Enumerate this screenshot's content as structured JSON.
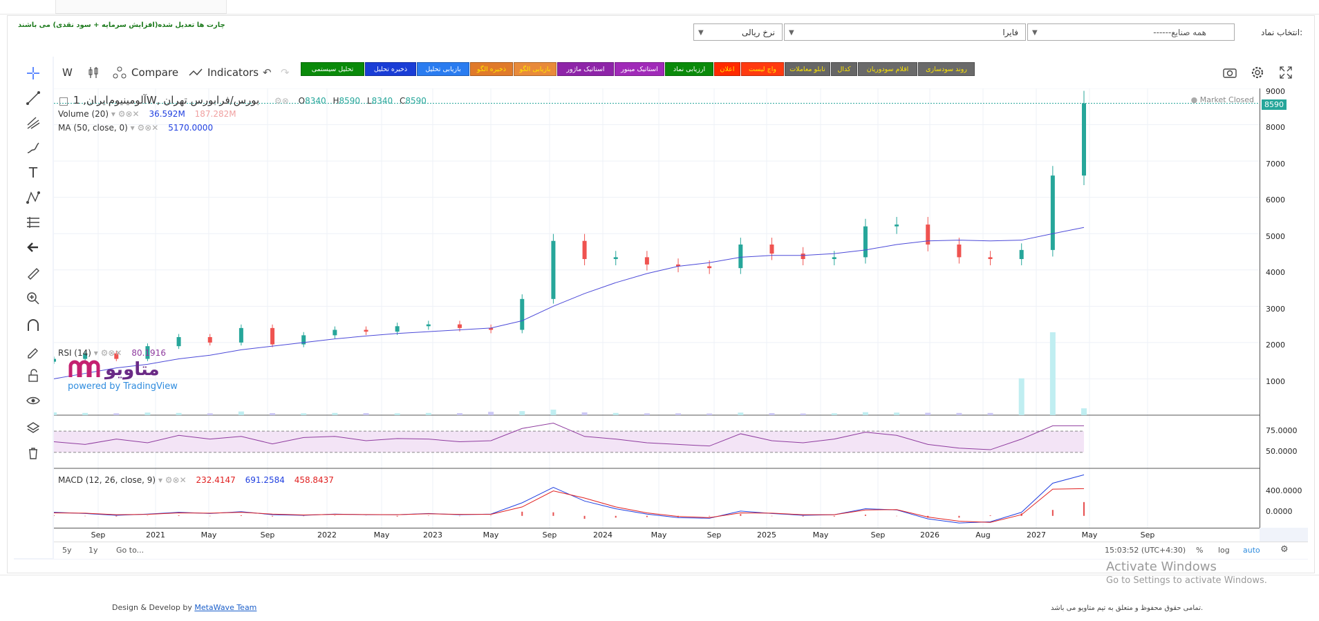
{
  "header": {
    "note": "چارت ها تعدیل شده(افزایش سرمایه + سود نقدی) می باشند",
    "select_symbol_label": "انتخاب نماد:",
    "industry_select": "------همه صنایع",
    "symbol_select": "فایرا",
    "price_select": "نرخ ریالی"
  },
  "toolbar": {
    "interval": "W",
    "compare": "Compare",
    "indicators": "Indicators",
    "persian_buttons": [
      {
        "label": "تحلیل سیستمی",
        "bg": "#0a8a0a",
        "fg": "#ffffff"
      },
      {
        "label": "ذخیره تحلیل",
        "bg": "#1a3dd6",
        "fg": "#ffffff"
      },
      {
        "label": "بازیابی تحلیل",
        "bg": "#2a7cf0",
        "fg": "#ffffff"
      },
      {
        "label": "ذخیره الگو",
        "bg": "#e07a2a",
        "fg": "#ffe600"
      },
      {
        "label": "بازیابی الگو",
        "bg": "#e88a3a",
        "fg": "#ffe600"
      },
      {
        "label": "استاتیک ماژور",
        "bg": "#8e24a8",
        "fg": "#ffffff"
      },
      {
        "label": "استاتیک مینور",
        "bg": "#a02ab8",
        "fg": "#ffffff"
      },
      {
        "label": "ارزیابی نماد",
        "bg": "#0a8a0a",
        "fg": "#ffffff"
      },
      {
        "label": "اعلان",
        "bg": "#ff2a00",
        "fg": "#ffe600"
      },
      {
        "label": "واچ لیست",
        "bg": "#ff3a10",
        "fg": "#ffe600"
      },
      {
        "label": "تابلو معاملات",
        "bg": "#666666",
        "fg": "#ffe600"
      },
      {
        "label": "کدال",
        "bg": "#666666",
        "fg": "#ffe600"
      },
      {
        "label": "اقلام سودوریان",
        "bg": "#6a6a6a",
        "fg": "#ffe600"
      },
      {
        "label": "روند سودسازی",
        "bg": "#6a6a6a",
        "fg": "#ffe600"
      }
    ]
  },
  "legend": {
    "symbol": "آلومینیوم‌ایران, 1W, بورس/فرابورس تهران",
    "o_label": "O",
    "o": "8340",
    "h_label": "H",
    "h": "8590",
    "l_label": "L",
    "l": "8340",
    "c_label": "C",
    "c": "8590",
    "volume_name": "Volume (20)",
    "volume_val": "36.592M",
    "volume_ma": "187.282M",
    "ma_name": "MA (50, close, 0)",
    "ma_val": "5170.0000",
    "market_status": "Market Closed",
    "last_price": "8590",
    "watermark": "متاویو",
    "powered": "powered by TradingView"
  },
  "rsi": {
    "name": "RSI (14)",
    "val": "80.1916",
    "ticks": [
      "75.0000",
      "50.0000"
    ]
  },
  "macd": {
    "name": "MACD (12, 26, close, 9)",
    "v1": "232.4147",
    "v2": "691.2584",
    "v3": "458.8437",
    "ticks": [
      "400.0000",
      "0.0000"
    ]
  },
  "price_axis": [
    "9000",
    "8000",
    "7000",
    "6000",
    "5000",
    "4000",
    "3000",
    "2000",
    "1000"
  ],
  "time_axis": [
    "Sep",
    "2021",
    "May",
    "Sep",
    "2022",
    "May",
    "2023",
    "May",
    "Sep",
    "2024",
    "May",
    "Sep",
    "2025",
    "May",
    "Sep",
    "2026",
    "Aug",
    "2027",
    "May",
    "Sep"
  ],
  "bottom": {
    "r5y": "5y",
    "r1y": "1y",
    "goto": "Go to...",
    "clock": "15:03:52 (UTC+4:30)",
    "pct": "%",
    "log": "log",
    "auto": "auto"
  },
  "footer": {
    "left_text": "Design & Develop by",
    "link": "MetaWave Team",
    "right_text": "تمامی حقوق محفوظ و متعلق به تیم متاویو می باشد."
  },
  "activate": {
    "title": "Activate Windows",
    "sub": "Go to Settings to activate Windows."
  },
  "colors": {
    "up": "#26a69a",
    "down": "#ef5350",
    "ma": "#4a48d8",
    "rsi": "#8e3a9e",
    "macd": "#2040e0",
    "signal": "#e02020"
  },
  "chart_data": {
    "type": "candlestick",
    "interval": "1W",
    "x": [
      "2020-09",
      "2020-11",
      "2021-01",
      "2021-03",
      "2021-05",
      "2021-07",
      "2021-09",
      "2021-11",
      "2022-01",
      "2022-03",
      "2022-05",
      "2022-07",
      "2022-09",
      "2022-11",
      "2023-01",
      "2023-03",
      "2023-05",
      "2023-07",
      "2023-09",
      "2023-11",
      "2024-01",
      "2024-03",
      "2024-05",
      "2024-07",
      "2024-09",
      "2024-11",
      "2025-01",
      "2025-03",
      "2025-05",
      "2025-07",
      "2025-09",
      "2025-11",
      "2026-01",
      "2026-03"
    ],
    "close": [
      1550,
      1700,
      1550,
      1900,
      2150,
      2000,
      2400,
      1950,
      2200,
      2350,
      2300,
      2450,
      2500,
      2400,
      2350,
      3200,
      4800,
      4300,
      4350,
      4150,
      4100,
      4050,
      4700,
      4450,
      4300,
      4350,
      5200,
      5250,
      4700,
      4350,
      4300,
      4550,
      6600,
      8590
    ],
    "ma50": [
      1000,
      1150,
      1300,
      1400,
      1550,
      1650,
      1800,
      1900,
      2000,
      2100,
      2180,
      2250,
      2300,
      2350,
      2400,
      2600,
      3000,
      3350,
      3650,
      3900,
      4100,
      4200,
      4350,
      4400,
      4400,
      4450,
      4550,
      4700,
      4800,
      4820,
      4800,
      4820,
      5000,
      5170
    ],
    "volume_m": [
      15,
      12,
      10,
      14,
      12,
      10,
      20,
      11,
      10,
      12,
      11,
      10,
      12,
      11,
      18,
      22,
      30,
      15,
      12,
      10,
      10,
      9,
      14,
      11,
      9,
      10,
      16,
      14,
      13,
      12,
      12,
      200,
      450,
      37
    ],
    "rsi": [
      50,
      45,
      55,
      48,
      62,
      55,
      60,
      46,
      58,
      60,
      52,
      56,
      55,
      50,
      52,
      75,
      85,
      60,
      55,
      48,
      45,
      42,
      65,
      52,
      48,
      55,
      68,
      62,
      45,
      38,
      35,
      55,
      80,
      80
    ],
    "macd": [
      60,
      40,
      10,
      30,
      60,
      40,
      70,
      20,
      10,
      30,
      20,
      20,
      40,
      20,
      30,
      220,
      480,
      250,
      120,
      30,
      -30,
      -40,
      80,
      40,
      10,
      20,
      120,
      100,
      -50,
      -120,
      -100,
      60,
      550,
      691
    ],
    "signal": [
      50,
      45,
      20,
      25,
      50,
      45,
      60,
      30,
      15,
      25,
      22,
      20,
      35,
      25,
      25,
      150,
      420,
      300,
      150,
      50,
      -10,
      -30,
      50,
      45,
      20,
      20,
      100,
      105,
      -20,
      -90,
      -110,
      20,
      450,
      459
    ],
    "ylim": [
      0,
      9000
    ]
  }
}
